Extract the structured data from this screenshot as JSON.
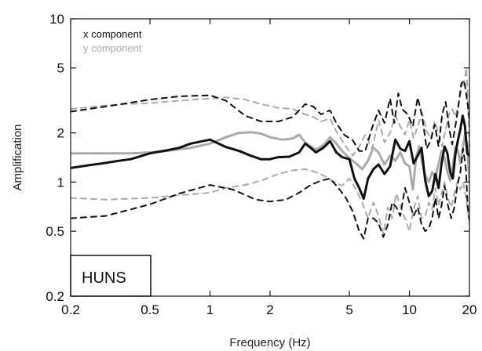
{
  "chart_data": {
    "type": "line",
    "title": "",
    "xlabel": "Frequency (Hz)",
    "ylabel": "Amplification",
    "xscale": "log",
    "yscale": "log",
    "xlim": [
      0.2,
      20
    ],
    "ylim": [
      0.2,
      10
    ],
    "xticks": [
      {
        "value": 0.2,
        "label": "0.2"
      },
      {
        "value": 0.5,
        "label": "0.5"
      },
      {
        "value": 1,
        "label": "1"
      },
      {
        "value": 2,
        "label": "2"
      },
      {
        "value": 5,
        "label": "5"
      },
      {
        "value": 10,
        "label": "10"
      },
      {
        "value": 20,
        "label": "20"
      }
    ],
    "yticks": [
      {
        "value": 0.2,
        "label": "0.2"
      },
      {
        "value": 0.5,
        "label": "0.5"
      },
      {
        "value": 1,
        "label": "1"
      },
      {
        "value": 2,
        "label": "2"
      },
      {
        "value": 5,
        "label": "5"
      },
      {
        "value": 10,
        "label": "10"
      }
    ],
    "legend_position": "top-left",
    "legend": [
      {
        "label": "x component",
        "color": "#111111"
      },
      {
        "label": "y component",
        "color": "#aaaaaa"
      }
    ],
    "annotation": "HUNS",
    "grid": false,
    "series": [
      {
        "component": "x",
        "kind": "mean",
        "color": "#111111",
        "dashed": false,
        "points": [
          [
            0.2,
            1.22
          ],
          [
            0.25,
            1.27
          ],
          [
            0.3,
            1.31
          ],
          [
            0.35,
            1.35
          ],
          [
            0.4,
            1.38
          ],
          [
            0.5,
            1.5
          ],
          [
            0.6,
            1.56
          ],
          [
            0.7,
            1.62
          ],
          [
            0.8,
            1.72
          ],
          [
            1.0,
            1.82
          ],
          [
            1.2,
            1.64
          ],
          [
            1.4,
            1.55
          ],
          [
            1.6,
            1.45
          ],
          [
            1.8,
            1.38
          ],
          [
            2.0,
            1.38
          ],
          [
            2.2,
            1.42
          ],
          [
            2.5,
            1.43
          ],
          [
            2.8,
            1.52
          ],
          [
            3.0,
            1.72
          ],
          [
            3.2,
            1.62
          ],
          [
            3.4,
            1.52
          ],
          [
            3.7,
            1.62
          ],
          [
            4.0,
            1.78
          ],
          [
            4.3,
            1.52
          ],
          [
            4.6,
            1.42
          ],
          [
            5.0,
            1.38
          ],
          [
            5.3,
            1.05
          ],
          [
            5.6,
            0.92
          ],
          [
            5.9,
            0.79
          ],
          [
            6.2,
            1.05
          ],
          [
            6.6,
            1.2
          ],
          [
            7.0,
            1.28
          ],
          [
            7.5,
            1.12
          ],
          [
            8.0,
            1.25
          ],
          [
            8.5,
            1.82
          ],
          [
            9.0,
            1.6
          ],
          [
            9.5,
            1.55
          ],
          [
            10.0,
            1.78
          ],
          [
            10.5,
            1.3
          ],
          [
            11.0,
            1.45
          ],
          [
            11.5,
            1.62
          ],
          [
            12.0,
            1.02
          ],
          [
            12.5,
            0.82
          ],
          [
            13.0,
            0.88
          ],
          [
            13.5,
            1.12
          ],
          [
            14.0,
            0.92
          ],
          [
            14.5,
            1.3
          ],
          [
            15.0,
            1.65
          ],
          [
            15.5,
            1.5
          ],
          [
            16.0,
            1.15
          ],
          [
            16.5,
            1.05
          ],
          [
            17.0,
            1.48
          ],
          [
            17.5,
            1.8
          ],
          [
            18.0,
            2.1
          ],
          [
            18.5,
            2.55
          ],
          [
            19.0,
            2.2
          ],
          [
            19.5,
            1.5
          ],
          [
            20.0,
            1.45
          ]
        ]
      },
      {
        "component": "x",
        "kind": "upper",
        "color": "#111111",
        "dashed": true,
        "points": [
          [
            0.2,
            2.7
          ],
          [
            0.3,
            2.9
          ],
          [
            0.5,
            3.2
          ],
          [
            0.7,
            3.35
          ],
          [
            1.0,
            3.4
          ],
          [
            1.2,
            3.15
          ],
          [
            1.5,
            2.55
          ],
          [
            1.8,
            2.35
          ],
          [
            2.2,
            2.35
          ],
          [
            2.6,
            2.5
          ],
          [
            3.0,
            3.0
          ],
          [
            3.3,
            2.9
          ],
          [
            3.6,
            2.6
          ],
          [
            4.0,
            2.75
          ],
          [
            4.3,
            2.3
          ],
          [
            4.7,
            1.95
          ],
          [
            5.2,
            1.8
          ],
          [
            5.6,
            1.55
          ],
          [
            6.0,
            1.55
          ],
          [
            6.5,
            2.15
          ],
          [
            7.0,
            2.75
          ],
          [
            7.5,
            2.3
          ],
          [
            8.0,
            3.25
          ],
          [
            8.4,
            2.3
          ],
          [
            8.8,
            3.5
          ],
          [
            9.2,
            2.8
          ],
          [
            9.8,
            2.6
          ],
          [
            10.4,
            2.2
          ],
          [
            11.0,
            3.3
          ],
          [
            11.6,
            2.5
          ],
          [
            12.2,
            1.6
          ],
          [
            12.8,
            1.8
          ],
          [
            13.4,
            2.25
          ],
          [
            14.0,
            1.65
          ],
          [
            14.6,
            2.6
          ],
          [
            15.2,
            3.1
          ],
          [
            15.8,
            2.15
          ],
          [
            16.4,
            1.7
          ],
          [
            17.0,
            2.2
          ],
          [
            17.6,
            2.9
          ],
          [
            18.2,
            4.0
          ],
          [
            18.8,
            4.2
          ],
          [
            19.4,
            3.3
          ],
          [
            20.0,
            2.4
          ]
        ]
      },
      {
        "component": "x",
        "kind": "lower",
        "color": "#111111",
        "dashed": true,
        "points": [
          [
            0.2,
            0.6
          ],
          [
            0.3,
            0.62
          ],
          [
            0.5,
            0.73
          ],
          [
            0.7,
            0.85
          ],
          [
            1.0,
            0.96
          ],
          [
            1.3,
            0.9
          ],
          [
            1.7,
            0.78
          ],
          [
            2.0,
            0.76
          ],
          [
            2.4,
            0.78
          ],
          [
            2.8,
            0.86
          ],
          [
            3.2,
            0.96
          ],
          [
            3.6,
            1.02
          ],
          [
            4.0,
            1.05
          ],
          [
            4.4,
            0.92
          ],
          [
            4.8,
            0.8
          ],
          [
            5.2,
            0.66
          ],
          [
            5.6,
            0.5
          ],
          [
            5.9,
            0.45
          ],
          [
            6.2,
            0.6
          ],
          [
            6.6,
            0.6
          ],
          [
            7.0,
            0.56
          ],
          [
            7.4,
            0.46
          ],
          [
            7.8,
            0.55
          ],
          [
            8.2,
            0.75
          ],
          [
            8.6,
            0.7
          ],
          [
            9.0,
            0.62
          ],
          [
            9.5,
            0.92
          ],
          [
            10.0,
            0.75
          ],
          [
            10.5,
            0.62
          ],
          [
            11.0,
            0.7
          ],
          [
            11.5,
            0.55
          ],
          [
            12.0,
            0.5
          ],
          [
            12.5,
            0.52
          ],
          [
            13.0,
            0.6
          ],
          [
            13.5,
            0.8
          ],
          [
            14.0,
            0.6
          ],
          [
            14.5,
            0.72
          ],
          [
            15.0,
            0.95
          ],
          [
            15.6,
            0.72
          ],
          [
            16.2,
            0.6
          ],
          [
            16.8,
            0.7
          ],
          [
            17.4,
            0.95
          ],
          [
            18.0,
            1.15
          ],
          [
            18.6,
            1.6
          ],
          [
            19.2,
            1.2
          ],
          [
            19.6,
            0.7
          ],
          [
            20.0,
            0.58
          ]
        ]
      },
      {
        "component": "y",
        "kind": "mean",
        "color": "#aaaaaa",
        "dashed": false,
        "points": [
          [
            0.2,
            1.5
          ],
          [
            0.3,
            1.5
          ],
          [
            0.4,
            1.5
          ],
          [
            0.5,
            1.52
          ],
          [
            0.6,
            1.55
          ],
          [
            0.8,
            1.62
          ],
          [
            1.0,
            1.72
          ],
          [
            1.2,
            1.88
          ],
          [
            1.4,
            2.0
          ],
          [
            1.6,
            2.02
          ],
          [
            1.8,
            1.98
          ],
          [
            2.0,
            1.88
          ],
          [
            2.3,
            1.82
          ],
          [
            2.6,
            1.85
          ],
          [
            2.8,
            1.95
          ],
          [
            3.0,
            1.75
          ],
          [
            3.2,
            1.65
          ],
          [
            3.4,
            1.58
          ],
          [
            3.7,
            1.68
          ],
          [
            4.0,
            1.88
          ],
          [
            4.3,
            1.72
          ],
          [
            4.6,
            1.55
          ],
          [
            5.0,
            1.4
          ],
          [
            5.4,
            1.3
          ],
          [
            5.8,
            1.2
          ],
          [
            6.2,
            1.35
          ],
          [
            6.6,
            1.62
          ],
          [
            7.0,
            1.52
          ],
          [
            7.5,
            1.28
          ],
          [
            8.0,
            1.45
          ],
          [
            8.5,
            1.35
          ],
          [
            9.0,
            1.52
          ],
          [
            9.5,
            1.3
          ],
          [
            10.0,
            1.25
          ],
          [
            10.4,
            0.9
          ],
          [
            10.8,
            1.4
          ],
          [
            11.2,
            1.65
          ],
          [
            11.6,
            1.3
          ],
          [
            12.0,
            1.1
          ],
          [
            12.5,
            1.0
          ],
          [
            13.0,
            1.15
          ],
          [
            13.5,
            1.05
          ],
          [
            14.0,
            1.3
          ],
          [
            14.5,
            1.55
          ],
          [
            15.0,
            1.4
          ],
          [
            15.5,
            1.15
          ],
          [
            16.0,
            1.02
          ],
          [
            16.5,
            1.25
          ],
          [
            17.0,
            1.65
          ],
          [
            17.5,
            1.55
          ],
          [
            18.0,
            1.3
          ],
          [
            18.5,
            1.6
          ],
          [
            19.0,
            1.95
          ],
          [
            19.5,
            1.65
          ],
          [
            20.0,
            1.0
          ]
        ]
      },
      {
        "component": "y",
        "kind": "upper",
        "color": "#aaaaaa",
        "dashed": true,
        "points": [
          [
            0.2,
            2.8
          ],
          [
            0.3,
            2.95
          ],
          [
            0.5,
            3.05
          ],
          [
            0.7,
            3.15
          ],
          [
            1.0,
            3.25
          ],
          [
            1.2,
            3.3
          ],
          [
            1.5,
            3.2
          ],
          [
            1.8,
            3.0
          ],
          [
            2.2,
            2.85
          ],
          [
            2.6,
            2.8
          ],
          [
            3.0,
            2.6
          ],
          [
            3.3,
            2.5
          ],
          [
            3.6,
            2.35
          ],
          [
            4.0,
            2.45
          ],
          [
            4.3,
            2.05
          ],
          [
            4.8,
            1.65
          ],
          [
            5.2,
            1.45
          ],
          [
            5.6,
            1.65
          ],
          [
            6.0,
            1.95
          ],
          [
            6.5,
            1.6
          ],
          [
            7.0,
            2.4
          ],
          [
            7.5,
            1.75
          ],
          [
            8.0,
            2.0
          ],
          [
            8.5,
            2.55
          ],
          [
            9.0,
            2.2
          ],
          [
            9.5,
            1.95
          ],
          [
            10.0,
            2.4
          ],
          [
            10.5,
            1.85
          ],
          [
            11.0,
            2.2
          ],
          [
            11.6,
            2.65
          ],
          [
            12.2,
            2.05
          ],
          [
            12.8,
            1.85
          ],
          [
            13.4,
            2.35
          ],
          [
            14.0,
            2.0
          ],
          [
            14.6,
            1.65
          ],
          [
            15.2,
            2.1
          ],
          [
            15.8,
            2.6
          ],
          [
            16.4,
            2.8
          ],
          [
            17.0,
            2.5
          ],
          [
            17.6,
            3.0
          ],
          [
            18.2,
            3.7
          ],
          [
            18.8,
            4.1
          ],
          [
            19.3,
            5.0
          ],
          [
            19.7,
            3.0
          ],
          [
            20.0,
            1.5
          ]
        ]
      },
      {
        "component": "y",
        "kind": "lower",
        "color": "#aaaaaa",
        "dashed": true,
        "points": [
          [
            0.2,
            0.8
          ],
          [
            0.3,
            0.78
          ],
          [
            0.5,
            0.8
          ],
          [
            0.7,
            0.83
          ],
          [
            1.0,
            0.86
          ],
          [
            1.2,
            0.92
          ],
          [
            1.5,
            0.96
          ],
          [
            1.8,
            1.02
          ],
          [
            2.2,
            1.12
          ],
          [
            2.6,
            1.18
          ],
          [
            3.0,
            1.2
          ],
          [
            3.4,
            1.15
          ],
          [
            3.8,
            1.08
          ],
          [
            4.2,
            1.0
          ],
          [
            4.6,
            0.95
          ],
          [
            5.0,
            1.05
          ],
          [
            5.4,
            0.9
          ],
          [
            5.8,
            0.75
          ],
          [
            6.2,
            0.6
          ],
          [
            6.6,
            0.75
          ],
          [
            7.0,
            0.62
          ],
          [
            7.4,
            0.48
          ],
          [
            7.8,
            0.7
          ],
          [
            8.2,
            0.6
          ],
          [
            8.6,
            0.85
          ],
          [
            9.0,
            0.72
          ],
          [
            9.5,
            0.6
          ],
          [
            10.0,
            0.5
          ],
          [
            10.5,
            0.68
          ],
          [
            11.0,
            0.82
          ],
          [
            11.5,
            0.6
          ],
          [
            12.0,
            0.62
          ],
          [
            12.5,
            0.75
          ],
          [
            13.0,
            0.68
          ],
          [
            13.5,
            0.92
          ],
          [
            14.0,
            0.72
          ],
          [
            14.5,
            0.85
          ],
          [
            15.0,
            1.0
          ],
          [
            15.6,
            0.8
          ],
          [
            16.2,
            0.7
          ],
          [
            16.8,
            0.85
          ],
          [
            17.4,
            1.0
          ],
          [
            18.0,
            0.9
          ],
          [
            18.6,
            1.0
          ],
          [
            19.2,
            0.8
          ],
          [
            19.7,
            0.65
          ],
          [
            20.0,
            0.55
          ]
        ]
      }
    ]
  }
}
